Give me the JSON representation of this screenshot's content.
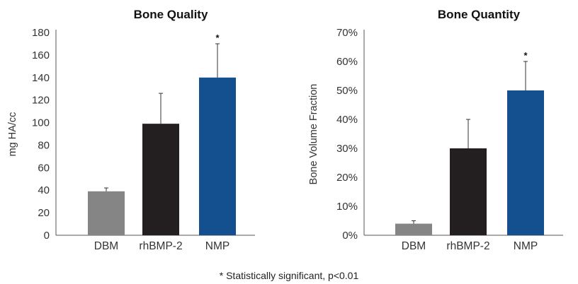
{
  "footnote": "* Statistically significant, p<0.01",
  "chart_data": [
    {
      "type": "bar",
      "title": "Bone Quality",
      "ylabel": "mg HA/cc",
      "xlabel": "",
      "categories": [
        "DBM",
        "rhBMP-2",
        "NMP"
      ],
      "values": [
        39,
        99,
        140
      ],
      "error_upper": [
        42,
        126,
        170
      ],
      "colors": [
        "#858585",
        "#231f20",
        "#144f8f"
      ],
      "significant": [
        false,
        false,
        true
      ],
      "significance_marker": "*",
      "ylim": [
        0,
        180
      ],
      "yticks": [
        0,
        20,
        40,
        60,
        80,
        100,
        120,
        140,
        160,
        180
      ],
      "ytick_labels": [
        "0",
        "20",
        "40",
        "60",
        "80",
        "100",
        "120",
        "140",
        "160",
        "180"
      ],
      "grid": false,
      "legend": "none"
    },
    {
      "type": "bar",
      "title": "Bone Quantity",
      "ylabel": "Bone Volume Fraction",
      "xlabel": "",
      "categories": [
        "DBM",
        "rhBMP-2",
        "NMP"
      ],
      "values": [
        4,
        30,
        50
      ],
      "error_upper": [
        5,
        40,
        60
      ],
      "colors": [
        "#858585",
        "#231f20",
        "#144f8f"
      ],
      "significant": [
        false,
        false,
        true
      ],
      "significance_marker": "*",
      "ylim": [
        0,
        70
      ],
      "yticks": [
        0,
        10,
        20,
        30,
        40,
        50,
        60,
        70
      ],
      "ytick_labels": [
        "0%",
        "10%",
        "20%",
        "30%",
        "40%",
        "50%",
        "60%",
        "70%"
      ],
      "grid": false,
      "legend": "none"
    }
  ]
}
